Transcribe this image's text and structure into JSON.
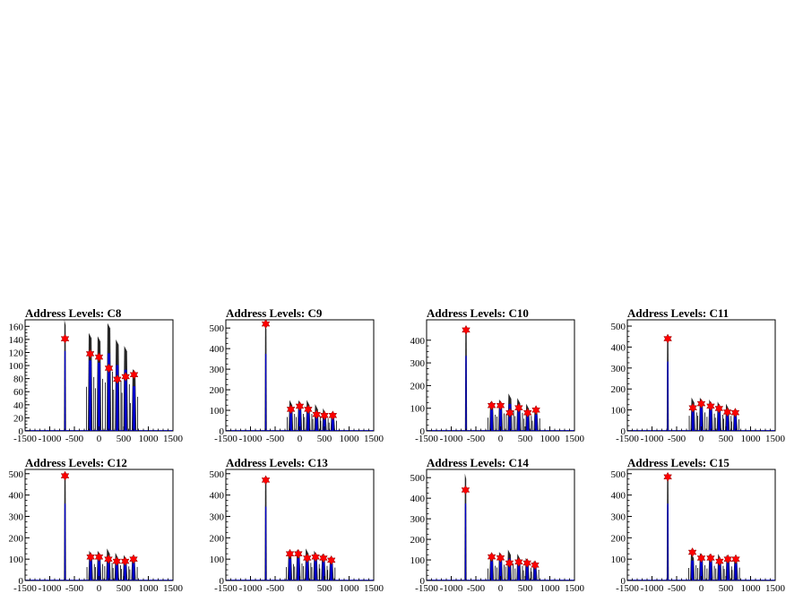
{
  "colors": {
    "data_line": "#000000",
    "peak_fill": "#0000cc",
    "marker": "#ff0000",
    "frame": "#000000"
  },
  "chart_data": [
    {
      "type": "histogram",
      "title": "Address Levels: C8",
      "xlim": [
        -1500,
        1500
      ],
      "ylim": [
        0,
        170
      ],
      "x_ticks": [
        -1500,
        -1000,
        -500,
        0,
        500,
        1000,
        1500
      ],
      "x_tick_labels": [
        "-1500",
        "-1000",
        "-500",
        "0",
        "500",
        "1000",
        "1500"
      ],
      "y_ticks": [
        0,
        20,
        40,
        60,
        80,
        100,
        120,
        140,
        160
      ],
      "y_tick_labels": [
        "0",
        "20",
        "40",
        "60",
        "80",
        "100",
        "120",
        "140",
        "160"
      ],
      "peaks": [
        {
          "x": -690,
          "height": 170
        },
        {
          "x": -180,
          "height": 150
        },
        {
          "x": 0,
          "height": 145
        },
        {
          "x": 200,
          "height": 165
        },
        {
          "x": 370,
          "height": 140
        },
        {
          "x": 540,
          "height": 130
        },
        {
          "x": 710,
          "height": 95
        }
      ],
      "markers": [
        {
          "x": -690,
          "y": 141
        },
        {
          "x": -180,
          "y": 118
        },
        {
          "x": 0,
          "y": 113
        },
        {
          "x": 200,
          "y": 96
        },
        {
          "x": 370,
          "y": 79
        },
        {
          "x": 540,
          "y": 83
        },
        {
          "x": 710,
          "y": 86
        }
      ]
    },
    {
      "type": "histogram",
      "title": "Address Levels: C9",
      "xlim": [
        -1500,
        1500
      ],
      "ylim": [
        0,
        540
      ],
      "x_ticks": [
        -1500,
        -1000,
        -500,
        0,
        500,
        1000,
        1500
      ],
      "x_tick_labels": [
        "-1500",
        "-1000",
        "-500",
        "0",
        "500",
        "1000",
        "1500"
      ],
      "y_ticks": [
        0,
        100,
        200,
        300,
        400,
        500
      ],
      "y_tick_labels": [
        "0",
        "100",
        "200",
        "300",
        "400",
        "500"
      ],
      "peaks": [
        {
          "x": -690,
          "height": 520
        },
        {
          "x": -180,
          "height": 150
        },
        {
          "x": 0,
          "height": 150
        },
        {
          "x": 170,
          "height": 150
        },
        {
          "x": 340,
          "height": 130
        },
        {
          "x": 500,
          "height": 110
        },
        {
          "x": 670,
          "height": 90
        }
      ],
      "markers": [
        {
          "x": -690,
          "y": 520
        },
        {
          "x": -180,
          "y": 105
        },
        {
          "x": 0,
          "y": 120
        },
        {
          "x": 170,
          "y": 105
        },
        {
          "x": 340,
          "y": 80
        },
        {
          "x": 500,
          "y": 75
        },
        {
          "x": 670,
          "y": 75
        }
      ]
    },
    {
      "type": "histogram",
      "title": "Address Levels: C10",
      "xlim": [
        -1500,
        1500
      ],
      "ylim": [
        0,
        490
      ],
      "x_ticks": [
        -1500,
        -1000,
        -500,
        0,
        500,
        1000,
        1500
      ],
      "x_tick_labels": [
        "-1500",
        "-1000",
        "-500",
        "0",
        "500",
        "1000",
        "1500"
      ],
      "y_ticks": [
        0,
        100,
        200,
        300,
        400
      ],
      "y_tick_labels": [
        "0",
        "100",
        "200",
        "300",
        "400"
      ],
      "peaks": [
        {
          "x": -700,
          "height": 460
        },
        {
          "x": -180,
          "height": 130
        },
        {
          "x": 0,
          "height": 140
        },
        {
          "x": 190,
          "height": 165
        },
        {
          "x": 370,
          "height": 145
        },
        {
          "x": 550,
          "height": 120
        },
        {
          "x": 720,
          "height": 100
        }
      ],
      "markers": [
        {
          "x": -700,
          "y": 445
        },
        {
          "x": -180,
          "y": 112
        },
        {
          "x": 0,
          "y": 112
        },
        {
          "x": 190,
          "y": 80
        },
        {
          "x": 370,
          "y": 102
        },
        {
          "x": 550,
          "y": 80
        },
        {
          "x": 720,
          "y": 92
        }
      ]
    },
    {
      "type": "histogram",
      "title": "Address Levels: C11",
      "xlim": [
        -1500,
        1500
      ],
      "ylim": [
        0,
        530
      ],
      "x_ticks": [
        -1500,
        -1000,
        -500,
        0,
        500,
        1000,
        1500
      ],
      "x_tick_labels": [
        "-1500",
        "-1000",
        "-500",
        "0",
        "500",
        "1000",
        "1500"
      ],
      "y_ticks": [
        0,
        100,
        200,
        300,
        400,
        500
      ],
      "y_tick_labels": [
        "0",
        "100",
        "200",
        "300",
        "400",
        "500"
      ],
      "peaks": [
        {
          "x": -680,
          "height": 460
        },
        {
          "x": -170,
          "height": 160
        },
        {
          "x": 0,
          "height": 160
        },
        {
          "x": 190,
          "height": 150
        },
        {
          "x": 360,
          "height": 140
        },
        {
          "x": 530,
          "height": 130
        },
        {
          "x": 690,
          "height": 100
        }
      ],
      "markers": [
        {
          "x": -680,
          "y": 440
        },
        {
          "x": -170,
          "y": 110
        },
        {
          "x": 0,
          "y": 130
        },
        {
          "x": 190,
          "y": 118
        },
        {
          "x": 360,
          "y": 107
        },
        {
          "x": 530,
          "y": 90
        },
        {
          "x": 690,
          "y": 87
        }
      ]
    },
    {
      "type": "histogram",
      "title": "Address Levels: C12",
      "xlim": [
        -1500,
        1500
      ],
      "ylim": [
        0,
        520
      ],
      "x_ticks": [
        -1500,
        -1000,
        -500,
        0,
        500,
        1000,
        1500
      ],
      "x_tick_labels": [
        "-1500",
        "-1000",
        "-500",
        "0",
        "500",
        "1000",
        "1500"
      ],
      "y_ticks": [
        0,
        100,
        200,
        300,
        400,
        500
      ],
      "y_tick_labels": [
        "0",
        "100",
        "200",
        "300",
        "400",
        "500"
      ],
      "peaks": [
        {
          "x": -690,
          "height": 500
        },
        {
          "x": -170,
          "height": 140
        },
        {
          "x": 0,
          "height": 140
        },
        {
          "x": 190,
          "height": 150
        },
        {
          "x": 360,
          "height": 130
        },
        {
          "x": 530,
          "height": 120
        },
        {
          "x": 700,
          "height": 115
        }
      ],
      "markers": [
        {
          "x": -690,
          "y": 490
        },
        {
          "x": -170,
          "y": 110
        },
        {
          "x": 0,
          "y": 110
        },
        {
          "x": 190,
          "y": 100
        },
        {
          "x": 360,
          "y": 90
        },
        {
          "x": 530,
          "y": 90
        },
        {
          "x": 700,
          "y": 100
        }
      ]
    },
    {
      "type": "histogram",
      "title": "Address Levels: C13",
      "xlim": [
        -1500,
        1500
      ],
      "ylim": [
        0,
        520
      ],
      "x_ticks": [
        -1500,
        -1000,
        -500,
        0,
        500,
        1000,
        1500
      ],
      "x_tick_labels": [
        "-1500",
        "-1000",
        "-500",
        "0",
        "500",
        "1000",
        "1500"
      ],
      "y_ticks": [
        0,
        100,
        200,
        300,
        400,
        500
      ],
      "y_tick_labels": [
        "0",
        "100",
        "200",
        "300",
        "400",
        "500"
      ],
      "peaks": [
        {
          "x": -690,
          "height": 480
        },
        {
          "x": -200,
          "height": 140
        },
        {
          "x": -30,
          "height": 145
        },
        {
          "x": 150,
          "height": 150
        },
        {
          "x": 320,
          "height": 140
        },
        {
          "x": 480,
          "height": 125
        },
        {
          "x": 640,
          "height": 110
        }
      ],
      "markers": [
        {
          "x": -690,
          "y": 470
        },
        {
          "x": -200,
          "y": 125
        },
        {
          "x": -30,
          "y": 125
        },
        {
          "x": 150,
          "y": 105
        },
        {
          "x": 320,
          "y": 110
        },
        {
          "x": 480,
          "y": 105
        },
        {
          "x": 640,
          "y": 95
        }
      ]
    },
    {
      "type": "histogram",
      "title": "Address Levels: C14",
      "xlim": [
        -1500,
        1500
      ],
      "ylim": [
        0,
        540
      ],
      "x_ticks": [
        -1500,
        -1000,
        -500,
        0,
        500,
        1000,
        1500
      ],
      "x_tick_labels": [
        "-1500",
        "-1000",
        "-500",
        "0",
        "500",
        "1000",
        "1500"
      ],
      "y_ticks": [
        0,
        100,
        200,
        300,
        400,
        500
      ],
      "y_tick_labels": [
        "0",
        "100",
        "200",
        "300",
        "400",
        "500"
      ],
      "peaks": [
        {
          "x": -710,
          "height": 520
        },
        {
          "x": -180,
          "height": 130
        },
        {
          "x": 0,
          "height": 140
        },
        {
          "x": 180,
          "height": 150
        },
        {
          "x": 370,
          "height": 130
        },
        {
          "x": 540,
          "height": 110
        },
        {
          "x": 700,
          "height": 95
        }
      ],
      "markers": [
        {
          "x": -710,
          "y": 440
        },
        {
          "x": -180,
          "y": 115
        },
        {
          "x": 0,
          "y": 110
        },
        {
          "x": 180,
          "y": 85
        },
        {
          "x": 370,
          "y": 90
        },
        {
          "x": 540,
          "y": 85
        },
        {
          "x": 700,
          "y": 75
        }
      ]
    },
    {
      "type": "histogram",
      "title": "Address Levels: C15",
      "xlim": [
        -1500,
        1500
      ],
      "ylim": [
        0,
        520
      ],
      "x_ticks": [
        -1500,
        -1000,
        -500,
        0,
        500,
        1000,
        1500
      ],
      "x_tick_labels": [
        "-1500",
        "-1000",
        "-500",
        "0",
        "500",
        "1000",
        "1500"
      ],
      "y_ticks": [
        0,
        100,
        200,
        300,
        400,
        500
      ],
      "y_tick_labels": [
        "0",
        "100",
        "200",
        "300",
        "400",
        "500"
      ],
      "peaks": [
        {
          "x": -680,
          "height": 500
        },
        {
          "x": -180,
          "height": 130
        },
        {
          "x": 0,
          "height": 130
        },
        {
          "x": 190,
          "height": 125
        },
        {
          "x": 370,
          "height": 125
        },
        {
          "x": 540,
          "height": 120
        },
        {
          "x": 700,
          "height": 110
        }
      ],
      "markers": [
        {
          "x": -680,
          "y": 485
        },
        {
          "x": -180,
          "y": 132
        },
        {
          "x": 0,
          "y": 105
        },
        {
          "x": 190,
          "y": 105
        },
        {
          "x": 370,
          "y": 90
        },
        {
          "x": 540,
          "y": 100
        },
        {
          "x": 700,
          "y": 100
        }
      ]
    }
  ]
}
